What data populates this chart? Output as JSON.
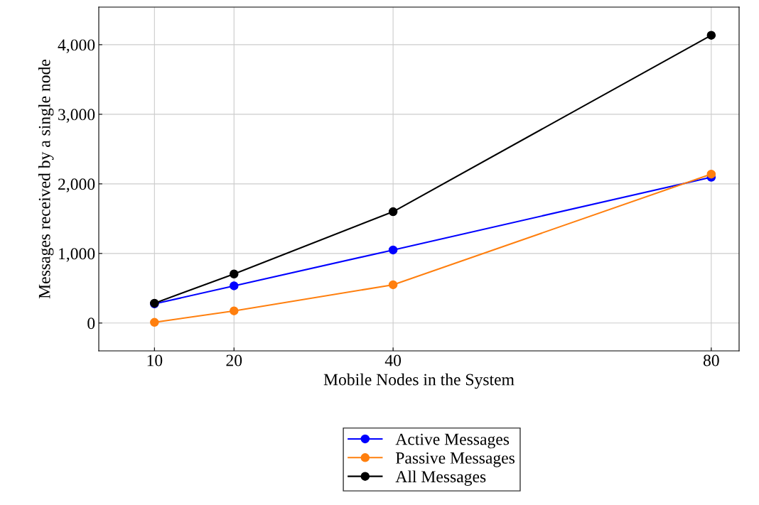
{
  "chart_data": {
    "type": "line",
    "xlabel": "Mobile Nodes in the System",
    "ylabel": "Messages received by a single node",
    "x": [
      10,
      20,
      40,
      80
    ],
    "series": [
      {
        "name": "Active Messages",
        "color": "#0000ff",
        "values": [
          275,
          535,
          1050,
          2095
        ]
      },
      {
        "name": "Passive Messages",
        "color": "#ff7f0e",
        "values": [
          10,
          175,
          550,
          2140
        ]
      },
      {
        "name": "All Messages",
        "color": "#000000",
        "values": [
          285,
          705,
          1600,
          4135
        ]
      }
    ],
    "xlim": [
      3,
      83.5
    ],
    "ylim": [
      -400,
      4540
    ],
    "xticks": [
      10,
      20,
      40,
      80
    ],
    "yticks": [
      {
        "value": 0,
        "label": "0"
      },
      {
        "value": 1000,
        "label": "1,000"
      },
      {
        "value": 2000,
        "label": "2,000"
      },
      {
        "value": 3000,
        "label": "3,000"
      },
      {
        "value": 4000,
        "label": "4,000"
      }
    ],
    "grid": true,
    "legend": "bottom",
    "marker": "circle",
    "line_style": "solid"
  }
}
